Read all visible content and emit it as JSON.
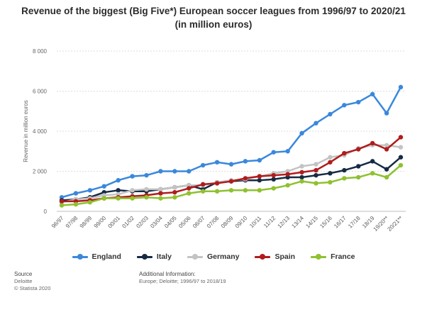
{
  "title_lines": [
    "Revenue of the biggest (Big Five*) European soccer leagues from 1996/97 to 2020/21",
    "(in million euros)"
  ],
  "chart_data": {
    "type": "line",
    "title": "Revenue of the biggest (Big Five*) European soccer leagues from 1996/97 to 2020/21 (in million euros)",
    "xlabel": "",
    "ylabel": "Revenue in million euros",
    "ylim": [
      0,
      8000
    ],
    "yticks": [
      0,
      2000,
      4000,
      6000,
      8000
    ],
    "ytick_labels": [
      "0",
      "2 000",
      "4 000",
      "6 000",
      "8 000"
    ],
    "grid": true,
    "legend_position": "bottom",
    "categories": [
      "96/97",
      "97/98",
      "98/99",
      "99/00",
      "00/01",
      "01/02",
      "02/03",
      "03/04",
      "04/05",
      "05/06",
      "06/07",
      "07/08",
      "08/09",
      "09/10",
      "10/11",
      "11/12",
      "12/13",
      "13/14",
      "14/15",
      "15/16",
      "16/17",
      "17/18",
      "18/19",
      "19/20**",
      "20/21**"
    ],
    "series": [
      {
        "name": "England",
        "color": "#3a88dc",
        "values": [
          700,
          900,
          1050,
          1250,
          1550,
          1750,
          1800,
          2000,
          2000,
          2000,
          2300,
          2450,
          2350,
          2500,
          2550,
          2950,
          3000,
          3900,
          4400,
          4850,
          5300,
          5450,
          5850,
          4900,
          6200
        ]
      },
      {
        "name": "Italy",
        "color": "#162a44",
        "values": [
          550,
          600,
          700,
          950,
          1050,
          1000,
          1000,
          1100,
          1200,
          1300,
          1100,
          1450,
          1500,
          1550,
          1550,
          1600,
          1700,
          1700,
          1800,
          1900,
          2050,
          2250,
          2500,
          2100,
          2700
        ]
      },
      {
        "name": "Germany",
        "color": "#c3c3c3",
        "values": [
          450,
          600,
          650,
          800,
          850,
          1050,
          1100,
          1100,
          1200,
          1300,
          1300,
          1450,
          1550,
          1600,
          1750,
          1900,
          2000,
          2250,
          2350,
          2700,
          2800,
          3150,
          3300,
          3300,
          3200
        ]
      },
      {
        "name": "Spain",
        "color": "#b01c1c",
        "values": [
          500,
          500,
          550,
          650,
          700,
          750,
          800,
          900,
          950,
          1150,
          1350,
          1400,
          1500,
          1650,
          1750,
          1800,
          1850,
          1950,
          2050,
          2450,
          2900,
          3100,
          3400,
          3100,
          3700
        ]
      },
      {
        "name": "France",
        "color": "#8fc12f",
        "values": [
          300,
          350,
          450,
          650,
          650,
          650,
          700,
          650,
          700,
          900,
          1000,
          1000,
          1050,
          1050,
          1050,
          1150,
          1300,
          1500,
          1400,
          1450,
          1650,
          1700,
          1900,
          1700,
          2300
        ]
      }
    ]
  },
  "footer": {
    "source_heading": "Source",
    "source_lines": [
      "Deloitte",
      "© Statista 2020"
    ],
    "info_heading": "Additional Information:",
    "info_lines": [
      "Europe; Deloitte; 1996/97 to 2018/19"
    ]
  }
}
